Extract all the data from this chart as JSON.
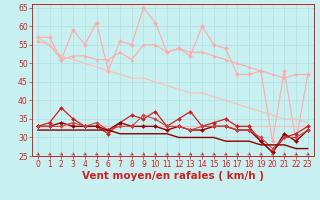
{
  "xlabel": "Vent moyen/en rafales ( km/h )",
  "background_color": "#c8f0f0",
  "xlim": [
    -0.5,
    23.5
  ],
  "ylim": [
    25,
    66
  ],
  "yticks": [
    25,
    30,
    35,
    40,
    45,
    50,
    55,
    60,
    65
  ],
  "xticks": [
    0,
    1,
    2,
    3,
    4,
    5,
    6,
    7,
    8,
    9,
    10,
    11,
    12,
    13,
    14,
    15,
    16,
    17,
    18,
    19,
    20,
    21,
    22,
    23
  ],
  "series": [
    {
      "color": "#ffaaaa",
      "linewidth": 0.8,
      "marker": "D",
      "markersize": 2.0,
      "data": [
        57,
        57,
        51,
        59,
        55,
        61,
        48,
        56,
        55,
        65,
        61,
        53,
        54,
        52,
        60,
        55,
        54,
        47,
        47,
        48,
        29,
        48,
        29,
        47
      ]
    },
    {
      "color": "#ffaaaa",
      "linewidth": 0.8,
      "marker": "^",
      "markersize": 2.0,
      "data": [
        56,
        55,
        51,
        52,
        52,
        51,
        51,
        53,
        51,
        55,
        55,
        53,
        54,
        53,
        53,
        52,
        51,
        50,
        49,
        48,
        47,
        46,
        47,
        47
      ]
    },
    {
      "color": "#ffbbbb",
      "linewidth": 0.8,
      "marker": null,
      "markersize": 0,
      "data": [
        57,
        55,
        52,
        51,
        50,
        49,
        48,
        47,
        46,
        46,
        45,
        44,
        43,
        42,
        42,
        41,
        40,
        39,
        38,
        37,
        36,
        35,
        35,
        34
      ]
    },
    {
      "color": "#ffbbbb",
      "linewidth": 0.8,
      "marker": null,
      "markersize": 0,
      "data": [
        33,
        33,
        33,
        33,
        33,
        33,
        33,
        33,
        33,
        33,
        33,
        33,
        33,
        33,
        33,
        33,
        33,
        33,
        33,
        33,
        33,
        33,
        33,
        33
      ]
    },
    {
      "color": "#cc2222",
      "linewidth": 0.9,
      "marker": "D",
      "markersize": 2.0,
      "data": [
        33,
        34,
        38,
        35,
        33,
        33,
        31,
        34,
        36,
        35,
        37,
        33,
        35,
        37,
        33,
        34,
        35,
        33,
        33,
        29,
        26,
        30,
        31,
        33
      ]
    },
    {
      "color": "#990000",
      "linewidth": 1.0,
      "marker": "D",
      "markersize": 2.0,
      "data": [
        33,
        33,
        34,
        33,
        33,
        33,
        32,
        34,
        33,
        33,
        33,
        32,
        33,
        32,
        32,
        33,
        33,
        32,
        32,
        29,
        26,
        31,
        29,
        32
      ]
    },
    {
      "color": "#cc4444",
      "linewidth": 0.8,
      "marker": "D",
      "markersize": 1.8,
      "data": [
        33,
        33,
        33,
        34,
        33,
        34,
        32,
        33,
        33,
        36,
        35,
        33,
        33,
        32,
        33,
        33,
        33,
        32,
        32,
        30,
        27,
        30,
        30,
        32
      ]
    },
    {
      "color": "#880000",
      "linewidth": 1.0,
      "marker": null,
      "markersize": 0,
      "data": [
        32,
        32,
        32,
        32,
        32,
        32,
        32,
        31,
        31,
        31,
        31,
        31,
        30,
        30,
        30,
        30,
        29,
        29,
        29,
        28,
        28,
        28,
        27,
        27
      ]
    }
  ],
  "arrow_color": "#cc2222",
  "grid_color": "#aadddd",
  "axis_color": "#cc2222",
  "tick_color": "#cc2222",
  "label_color": "#cc2222",
  "tick_fontsize": 5.5,
  "xlabel_fontsize": 7.5
}
